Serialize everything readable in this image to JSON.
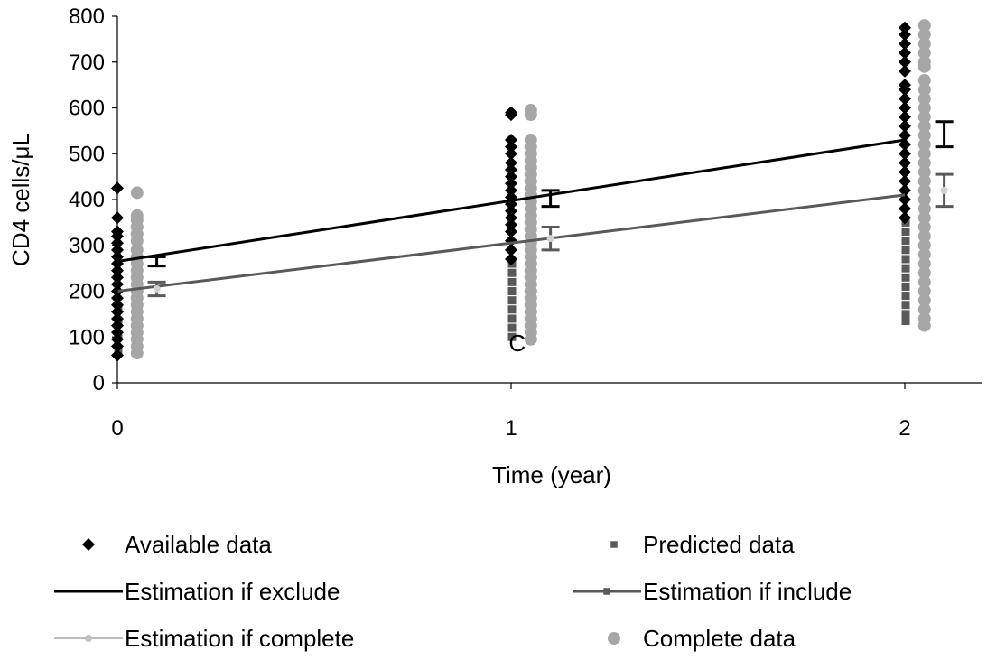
{
  "chart_data": {
    "type": "scatter",
    "title": "",
    "xlabel": "Time (year)",
    "ylabel": "CD4 cells/μL",
    "xlim": [
      0,
      2.2
    ],
    "ylim": [
      0,
      800
    ],
    "x_ticks": [
      "0",
      "1",
      "2"
    ],
    "y_ticks": [
      "0",
      "100",
      "200",
      "300",
      "400",
      "500",
      "600",
      "700",
      "800"
    ],
    "grid": false,
    "annotations": [
      {
        "text": "C",
        "x": 1.02,
        "y": 85
      }
    ],
    "series": [
      {
        "name": "Available data",
        "kind": "scatter",
        "marker": "diamond",
        "color": "#000000",
        "points": [
          [
            0,
            60
          ],
          [
            0,
            80
          ],
          [
            0,
            95
          ],
          [
            0,
            110
          ],
          [
            0,
            125
          ],
          [
            0,
            140
          ],
          [
            0,
            155
          ],
          [
            0,
            170
          ],
          [
            0,
            185
          ],
          [
            0,
            200
          ],
          [
            0,
            215
          ],
          [
            0,
            230
          ],
          [
            0,
            245
          ],
          [
            0,
            260
          ],
          [
            0,
            275
          ],
          [
            0,
            290
          ],
          [
            0,
            305
          ],
          [
            0,
            320
          ],
          [
            0,
            330
          ],
          [
            0,
            360
          ],
          [
            0,
            425
          ],
          [
            1,
            270
          ],
          [
            1,
            290
          ],
          [
            1,
            310
          ],
          [
            1,
            330
          ],
          [
            1,
            345
          ],
          [
            1,
            360
          ],
          [
            1,
            375
          ],
          [
            1,
            390
          ],
          [
            1,
            405
          ],
          [
            1,
            420
          ],
          [
            1,
            435
          ],
          [
            1,
            450
          ],
          [
            1,
            465
          ],
          [
            1,
            480
          ],
          [
            1,
            500
          ],
          [
            1,
            515
          ],
          [
            1,
            530
          ],
          [
            1,
            585
          ],
          [
            1,
            590
          ],
          [
            2,
            360
          ],
          [
            2,
            380
          ],
          [
            2,
            400
          ],
          [
            2,
            420
          ],
          [
            2,
            440
          ],
          [
            2,
            460
          ],
          [
            2,
            480
          ],
          [
            2,
            500
          ],
          [
            2,
            520
          ],
          [
            2,
            540
          ],
          [
            2,
            560
          ],
          [
            2,
            580
          ],
          [
            2,
            600
          ],
          [
            2,
            620
          ],
          [
            2,
            640
          ],
          [
            2,
            650
          ],
          [
            2,
            680
          ],
          [
            2,
            700
          ],
          [
            2,
            720
          ],
          [
            2,
            740
          ],
          [
            2,
            760
          ],
          [
            2,
            775
          ]
        ]
      },
      {
        "name": "Predicted data",
        "kind": "scatter",
        "marker": "square",
        "color": "#595959",
        "points": [
          [
            0,
            70
          ],
          [
            0,
            100
          ],
          [
            0,
            130
          ],
          [
            0,
            160
          ],
          [
            1,
            100
          ],
          [
            1,
            120
          ],
          [
            1,
            140
          ],
          [
            1,
            160
          ],
          [
            1,
            180
          ],
          [
            1,
            200
          ],
          [
            1,
            220
          ],
          [
            1,
            240
          ],
          [
            1,
            260
          ],
          [
            2,
            135
          ],
          [
            2,
            150
          ],
          [
            2,
            170
          ],
          [
            2,
            190
          ],
          [
            2,
            210
          ],
          [
            2,
            230
          ],
          [
            2,
            250
          ],
          [
            2,
            270
          ],
          [
            2,
            290
          ],
          [
            2,
            310
          ],
          [
            2,
            330
          ],
          [
            2,
            350
          ]
        ]
      },
      {
        "name": "Complete data",
        "kind": "scatter",
        "marker": "circle",
        "color": "#a6a6a6",
        "x_offset": 0.05,
        "points": [
          [
            0,
            65
          ],
          [
            0,
            80
          ],
          [
            0,
            95
          ],
          [
            0,
            110
          ],
          [
            0,
            125
          ],
          [
            0,
            140
          ],
          [
            0,
            155
          ],
          [
            0,
            170
          ],
          [
            0,
            185
          ],
          [
            0,
            200
          ],
          [
            0,
            215
          ],
          [
            0,
            230
          ],
          [
            0,
            245
          ],
          [
            0,
            260
          ],
          [
            0,
            275
          ],
          [
            0,
            290
          ],
          [
            0,
            310
          ],
          [
            0,
            325
          ],
          [
            0,
            340
          ],
          [
            0,
            355
          ],
          [
            0,
            365
          ],
          [
            0,
            415
          ],
          [
            1,
            95
          ],
          [
            1,
            110
          ],
          [
            1,
            125
          ],
          [
            1,
            140
          ],
          [
            1,
            155
          ],
          [
            1,
            170
          ],
          [
            1,
            185
          ],
          [
            1,
            200
          ],
          [
            1,
            215
          ],
          [
            1,
            230
          ],
          [
            1,
            245
          ],
          [
            1,
            260
          ],
          [
            1,
            275
          ],
          [
            1,
            290
          ],
          [
            1,
            305
          ],
          [
            1,
            320
          ],
          [
            1,
            335
          ],
          [
            1,
            350
          ],
          [
            1,
            365
          ],
          [
            1,
            380
          ],
          [
            1,
            395
          ],
          [
            1,
            410
          ],
          [
            1,
            425
          ],
          [
            1,
            440
          ],
          [
            1,
            455
          ],
          [
            1,
            470
          ],
          [
            1,
            485
          ],
          [
            1,
            500
          ],
          [
            1,
            515
          ],
          [
            1,
            530
          ],
          [
            1,
            585
          ],
          [
            1,
            595
          ],
          [
            2,
            125
          ],
          [
            2,
            140
          ],
          [
            2,
            160
          ],
          [
            2,
            180
          ],
          [
            2,
            200
          ],
          [
            2,
            220
          ],
          [
            2,
            240
          ],
          [
            2,
            260
          ],
          [
            2,
            280
          ],
          [
            2,
            300
          ],
          [
            2,
            320
          ],
          [
            2,
            340
          ],
          [
            2,
            360
          ],
          [
            2,
            380
          ],
          [
            2,
            400
          ],
          [
            2,
            420
          ],
          [
            2,
            440
          ],
          [
            2,
            460
          ],
          [
            2,
            480
          ],
          [
            2,
            500
          ],
          [
            2,
            520
          ],
          [
            2,
            540
          ],
          [
            2,
            560
          ],
          [
            2,
            580
          ],
          [
            2,
            600
          ],
          [
            2,
            620
          ],
          [
            2,
            640
          ],
          [
            2,
            660
          ],
          [
            2,
            690
          ],
          [
            2,
            700
          ],
          [
            2,
            720
          ],
          [
            2,
            740
          ],
          [
            2,
            760
          ],
          [
            2,
            780
          ]
        ]
      },
      {
        "name": "Estimation if exclude",
        "kind": "line",
        "color": "#000000",
        "x": [
          0,
          2
        ],
        "y": [
          265,
          530
        ],
        "error_bars": [
          {
            "x": 0.1,
            "y": 265,
            "low": 255,
            "high": 275
          },
          {
            "x": 1.1,
            "y": 405,
            "low": 385,
            "high": 420
          },
          {
            "x": 2.1,
            "y": 540,
            "low": 515,
            "high": 570
          }
        ]
      },
      {
        "name": "Estimation if include",
        "kind": "line",
        "color": "#595959",
        "x": [
          0,
          2
        ],
        "y": [
          200,
          410
        ],
        "error_bars": [
          {
            "x": 0.1,
            "y": 205,
            "low": 190,
            "high": 220
          },
          {
            "x": 1.1,
            "y": 315,
            "low": 290,
            "high": 340
          },
          {
            "x": 2.1,
            "y": 420,
            "low": 385,
            "high": 455
          }
        ]
      },
      {
        "name": "Estimation if complete",
        "kind": "line",
        "color": "#a6a6a6",
        "x": [
          0.1,
          1.1,
          2.1
        ],
        "y": [
          205,
          315,
          420
        ]
      }
    ],
    "legend": {
      "placement": "bottom",
      "items": [
        {
          "label": "Available data",
          "symbol": "diamond",
          "color": "#000000"
        },
        {
          "label": "Predicted data",
          "symbol": "square",
          "color": "#595959"
        },
        {
          "label": "Estimation if exclude",
          "symbol": "line",
          "color": "#000000"
        },
        {
          "label": "Estimation if include",
          "symbol": "line-square",
          "color": "#595959"
        },
        {
          "label": "Estimation if complete",
          "symbol": "line-circle",
          "color": "#a6a6a6"
        },
        {
          "label": "Complete data",
          "symbol": "circle",
          "color": "#a6a6a6"
        }
      ]
    }
  }
}
